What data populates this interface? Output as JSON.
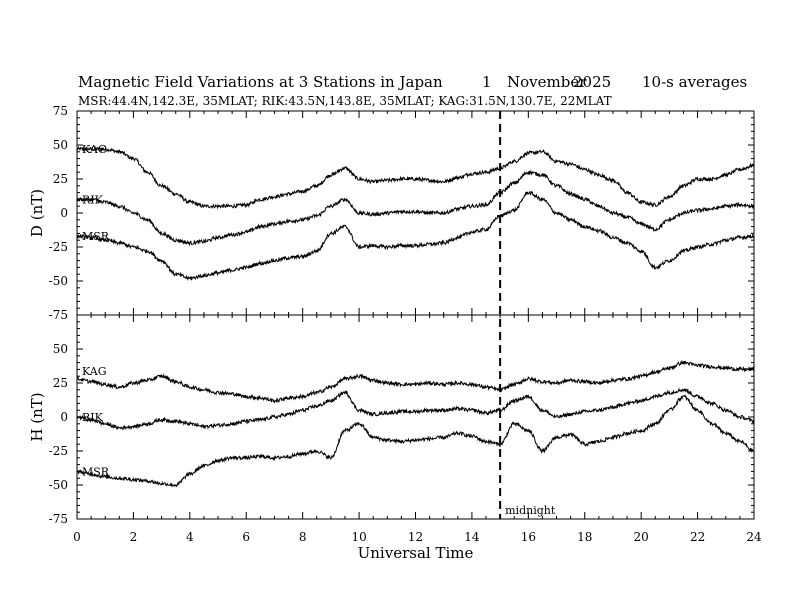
{
  "header": {
    "title": "Magnetic Field Variations at 3 Stations in Japan",
    "day": "1",
    "month": "November",
    "year": "2025",
    "averaging": "10-s averages",
    "stations_info": "MSR:44.4N,142.3E, 35MLAT;  RIK:43.5N,143.8E, 35MLAT;  KAG:31.5N,130.7E, 22MLAT"
  },
  "chart_data": {
    "type": "line",
    "xlabel": "Universal Time",
    "xlim": [
      0,
      24
    ],
    "x_ticks": [
      0,
      2,
      4,
      6,
      8,
      10,
      12,
      14,
      16,
      18,
      20,
      22,
      24
    ],
    "midnight_marker": {
      "x": 15,
      "label": "midnight"
    },
    "x": [
      0,
      0.5,
      1,
      1.5,
      2,
      2.5,
      3,
      3.5,
      4,
      4.5,
      5,
      5.5,
      6,
      6.5,
      7,
      7.5,
      8,
      8.5,
      9,
      9.5,
      10,
      10.5,
      11,
      11.5,
      12,
      12.5,
      13,
      13.5,
      14,
      14.5,
      15,
      15.5,
      16,
      16.5,
      17,
      17.5,
      18,
      18.5,
      19,
      19.5,
      20,
      20.5,
      21,
      21.5,
      22,
      22.5,
      23,
      23.5,
      24
    ],
    "panels": [
      {
        "ylabel": "D (nT)",
        "ylim": [
          -75,
          75
        ],
        "y_ticks": [
          75,
          50,
          25,
          0,
          -25,
          -50,
          -75
        ],
        "series": [
          {
            "name": "KAG",
            "values": [
              47,
              47,
              47,
              45,
              40,
              30,
              20,
              14,
              8,
              5,
              5,
              5,
              6,
              10,
              12,
              14,
              16,
              20,
              28,
              33,
              25,
              23,
              24,
              25,
              25,
              24,
              23,
              26,
              29,
              30,
              33,
              38,
              44,
              45,
              38,
              36,
              32,
              28,
              24,
              15,
              8,
              6,
              12,
              20,
              25,
              25,
              28,
              32,
              35
            ]
          },
          {
            "name": "RIK",
            "values": [
              10,
              10,
              8,
              5,
              0,
              -5,
              -15,
              -20,
              -22,
              -21,
              -18,
              -16,
              -14,
              -10,
              -8,
              -6,
              -5,
              -2,
              5,
              10,
              0,
              -1,
              0,
              1,
              1,
              0,
              0,
              3,
              5,
              6,
              15,
              22,
              30,
              28,
              20,
              14,
              10,
              5,
              0,
              -3,
              -8,
              -12,
              -5,
              0,
              2,
              3,
              5,
              6,
              5
            ]
          },
          {
            "name": "MSR",
            "values": [
              -17,
              -18,
              -20,
              -22,
              -25,
              -28,
              -35,
              -45,
              -48,
              -46,
              -44,
              -42,
              -40,
              -37,
              -35,
              -33,
              -32,
              -28,
              -15,
              -10,
              -25,
              -24,
              -25,
              -24,
              -24,
              -23,
              -22,
              -18,
              -14,
              -12,
              -2,
              2,
              15,
              10,
              0,
              -5,
              -10,
              -13,
              -18,
              -22,
              -28,
              -40,
              -35,
              -28,
              -25,
              -23,
              -20,
              -18,
              -17
            ]
          }
        ]
      },
      {
        "ylabel": "H (nT)",
        "ylim": [
          -75,
          75
        ],
        "y_ticks": [
          75,
          50,
          25,
          0,
          -25,
          -50,
          -75
        ],
        "series": [
          {
            "name": "KAG",
            "values": [
              28,
              26,
              24,
              22,
              25,
              27,
              30,
              26,
              22,
              20,
              18,
              17,
              15,
              14,
              12,
              14,
              15,
              18,
              22,
              28,
              30,
              27,
              25,
              24,
              24,
              25,
              24,
              25,
              24,
              22,
              20,
              24,
              28,
              26,
              25,
              27,
              26,
              25,
              27,
              28,
              30,
              33,
              36,
              40,
              38,
              37,
              36,
              35,
              35
            ]
          },
          {
            "name": "RIK",
            "values": [
              0,
              -2,
              -5,
              -8,
              -7,
              -5,
              -2,
              -3,
              -5,
              -7,
              -6,
              -5,
              -3,
              -2,
              0,
              2,
              5,
              8,
              12,
              18,
              5,
              2,
              3,
              4,
              4,
              5,
              5,
              6,
              5,
              3,
              5,
              12,
              15,
              5,
              0,
              2,
              4,
              5,
              7,
              10,
              12,
              15,
              18,
              20,
              15,
              10,
              5,
              0,
              -3
            ]
          },
          {
            "name": "MSR",
            "values": [
              -40,
              -42,
              -44,
              -45,
              -46,
              -47,
              -49,
              -50,
              -42,
              -36,
              -32,
              -30,
              -30,
              -29,
              -30,
              -29,
              -27,
              -25,
              -30,
              -10,
              -5,
              -15,
              -17,
              -18,
              -17,
              -16,
              -15,
              -12,
              -14,
              -18,
              -20,
              -5,
              -10,
              -25,
              -15,
              -13,
              -20,
              -18,
              -15,
              -12,
              -10,
              -5,
              5,
              15,
              5,
              -5,
              -12,
              -18,
              -25
            ]
          }
        ]
      }
    ]
  }
}
